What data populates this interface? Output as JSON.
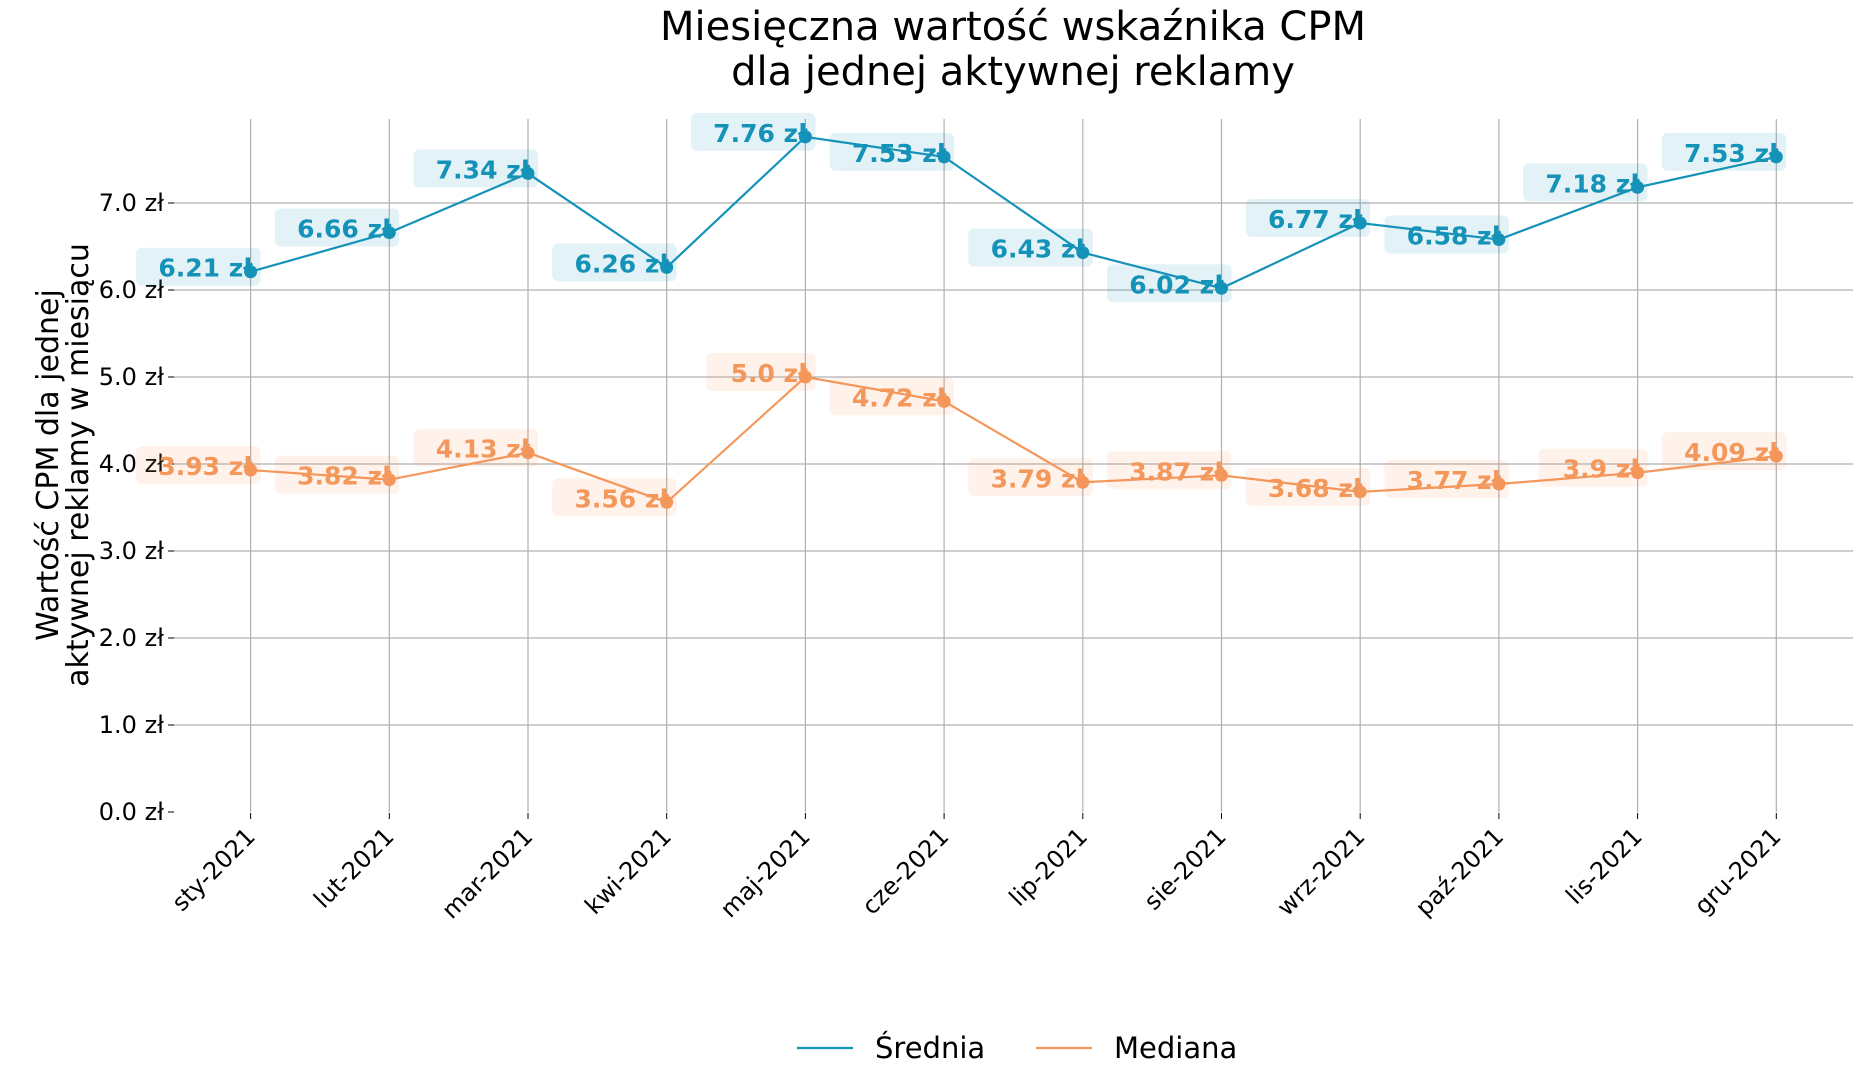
{
  "chart_data": {
    "type": "line",
    "title": "Miesięczna wartość wskaźnika CPM\ndla jednej aktywnej reklamy",
    "xlabel": "",
    "ylabel": "Wartość CPM dla jednej\naktywnej reklamy w miesiącu",
    "categories": [
      "sty-2021",
      "lut-2021",
      "mar-2021",
      "kwi-2021",
      "maj-2021",
      "cze-2021",
      "lip-2021",
      "sie-2021",
      "wrz-2021",
      "paź-2021",
      "lis-2021",
      "gru-2021"
    ],
    "yticks": [
      "0.0 zł",
      "1.0 zł",
      "2.0 zł",
      "3.0 zł",
      "4.0 zł",
      "5.0 zł",
      "6.0 zł",
      "7.0 zł"
    ],
    "ylim": [
      0,
      8.0
    ],
    "grid": true,
    "legend": "bottom-center",
    "series": [
      {
        "name": "Średnia",
        "color": "#1592b8",
        "values": [
          6.21,
          6.66,
          7.34,
          6.26,
          7.76,
          7.53,
          6.43,
          6.02,
          6.77,
          6.58,
          7.18,
          7.53
        ],
        "labels": [
          "6.21 zł",
          "6.66 zł",
          "7.34 zł",
          "6.26 zł",
          "7.76 zł",
          "7.53 zł",
          "6.43 zł",
          "6.02 zł",
          "6.77 zł",
          "6.58 zł",
          "7.18 zł",
          "7.53 zł"
        ]
      },
      {
        "name": "Mediana",
        "color": "#f4975a",
        "values": [
          3.93,
          3.82,
          4.13,
          3.56,
          5.0,
          4.72,
          3.79,
          3.87,
          3.68,
          3.77,
          3.9,
          4.09
        ],
        "labels": [
          "3.93 zł",
          "3.82 zł",
          "4.13 zł",
          "3.56 zł",
          "5.0 zł",
          "4.72 zł",
          "3.79 zł",
          "3.87 zł",
          "3.68 zł",
          "3.77 zł",
          "3.9 zł",
          "4.09 zł"
        ]
      }
    ]
  }
}
